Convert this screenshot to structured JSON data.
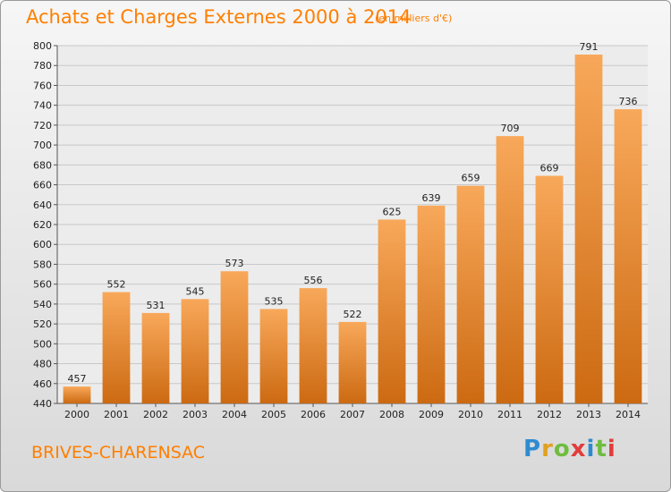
{
  "header": {
    "title": "Achats et Charges Externes 2000 à 2014",
    "unit": "(en milliers d'€)"
  },
  "footer": {
    "commune": "BRIVES-CHARENSAC",
    "logo_letters": [
      "P",
      "r",
      "o",
      "x",
      "i",
      "t",
      "i"
    ]
  },
  "colors": {
    "accent": "#ff7f00",
    "bar_light": "#f8a85a",
    "bar_dark": "#cc6a12",
    "logo": [
      "#2e8bd0",
      "#e0a021",
      "#6fbd3f",
      "#e23c3c",
      "#2e8bd0",
      "#6fbd3f",
      "#e23c3c"
    ]
  },
  "chart_data": {
    "type": "bar",
    "title": "Achats et Charges Externes 2000 à 2014",
    "categories": [
      "2000",
      "2001",
      "2002",
      "2003",
      "2004",
      "2005",
      "2006",
      "2007",
      "2008",
      "2009",
      "2010",
      "2011",
      "2012",
      "2013",
      "2014"
    ],
    "values": [
      457,
      552,
      531,
      545,
      573,
      535,
      556,
      522,
      625,
      639,
      659,
      709,
      669,
      791,
      736
    ],
    "xlabel": "",
    "ylabel": "",
    "ylim": [
      440,
      800
    ],
    "yticks": [
      440,
      460,
      480,
      500,
      520,
      540,
      560,
      580,
      600,
      620,
      640,
      660,
      680,
      700,
      720,
      740,
      760,
      780,
      800
    ],
    "grid": true,
    "legend": "none"
  }
}
